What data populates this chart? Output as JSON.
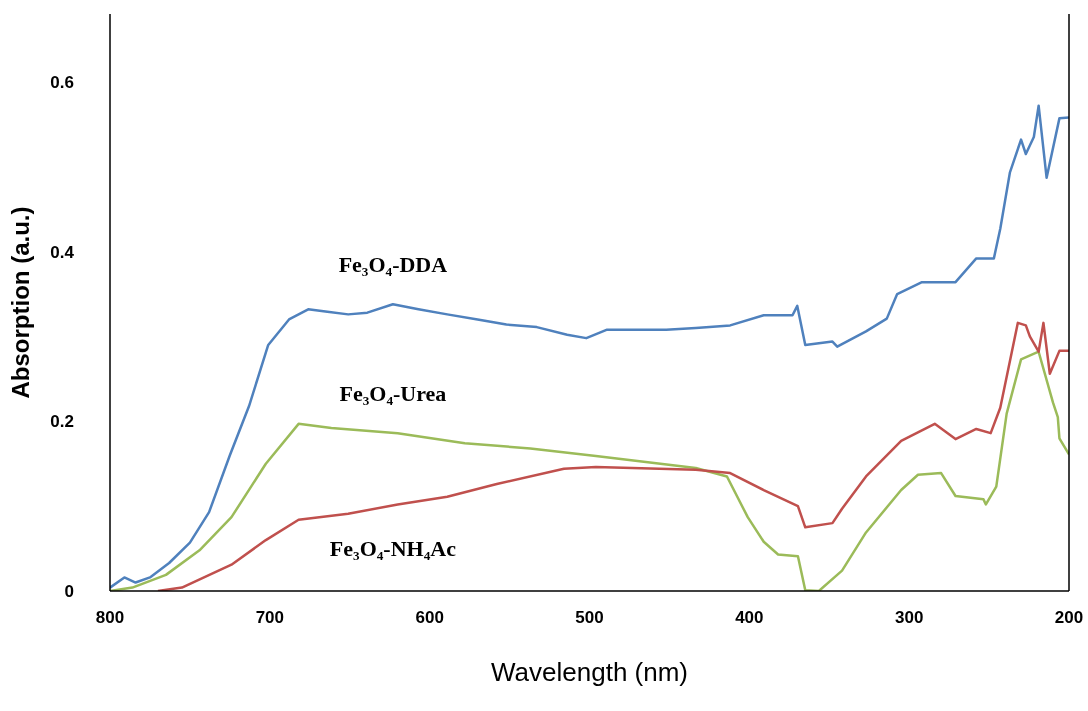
{
  "chart_data": {
    "type": "line",
    "xlabel": "Wavelength (nm)",
    "ylabel": "Absorption (a.u.)",
    "xlim": [
      800,
      200
    ],
    "xticks": [
      800,
      700,
      600,
      500,
      400,
      300,
      200
    ],
    "ylim": [
      0,
      0.68
    ],
    "yticks": [
      0,
      0.2,
      0.4,
      0.6
    ],
    "marker": "none",
    "line_style": "solid",
    "series": [
      {
        "name": "Fe₃O₄-DDA",
        "color": "#4f81bd",
        "x": [
          800,
          791,
          784,
          775,
          763,
          750,
          738,
          725,
          713,
          701,
          688,
          676,
          664,
          651,
          639,
          623,
          607,
          589,
          570,
          552,
          533,
          514,
          502,
          489,
          471,
          452,
          433.5,
          412,
          391,
          373,
          370,
          365,
          348,
          345,
          327,
          314,
          307.5,
          292,
          271,
          258,
          247,
          243,
          237,
          230,
          227,
          222,
          219,
          214,
          206,
          200
        ],
        "values": [
          0.004,
          0.016,
          0.01,
          0.016,
          0.033,
          0.057,
          0.093,
          0.16,
          0.218,
          0.29,
          0.32,
          0.332,
          0.329,
          0.326,
          0.328,
          0.338,
          0.332,
          0.326,
          0.32,
          0.314,
          0.311,
          0.302,
          0.298,
          0.308,
          0.308,
          0.308,
          0.31,
          0.313,
          0.325,
          0.325,
          0.336,
          0.29,
          0.294,
          0.288,
          0.306,
          0.321,
          0.35,
          0.364,
          0.364,
          0.392,
          0.392,
          0.427,
          0.493,
          0.532,
          0.515,
          0.535,
          0.572,
          0.487,
          0.557,
          0.558
        ]
      },
      {
        "name": "Fe₃O₄-Urea",
        "color": "#9bbb59",
        "x": [
          800,
          786,
          765,
          744,
          724,
          702.5,
          682,
          661.5,
          620,
          578,
          537,
          496,
          433.5,
          414,
          401,
          391,
          382,
          369.6,
          365,
          356.5,
          342,
          327,
          305,
          294.5,
          280,
          271,
          253.5,
          252,
          245.5,
          239,
          230,
          219,
          210,
          207,
          206,
          200
        ],
        "values": [
          0.0,
          0.004,
          0.019,
          0.048,
          0.087,
          0.15,
          0.197,
          0.192,
          0.186,
          0.174,
          0.168,
          0.159,
          0.145,
          0.135,
          0.087,
          0.058,
          0.043,
          0.041,
          0.001,
          0.0,
          0.024,
          0.069,
          0.119,
          0.137,
          0.139,
          0.112,
          0.108,
          0.102,
          0.123,
          0.209,
          0.273,
          0.282,
          0.222,
          0.205,
          0.18,
          0.161
        ]
      },
      {
        "name": "Fe₃O₄-NH₄Ac",
        "color": "#c0504d",
        "x": [
          770,
          755,
          724,
          702.5,
          682,
          651,
          620,
          589,
          558,
          516,
          496,
          433.5,
          412,
          391,
          369.6,
          365,
          348,
          342,
          327,
          305,
          284,
          271,
          258,
          249,
          243,
          232,
          227,
          224.5,
          219,
          216,
          212,
          206,
          200
        ],
        "values": [
          0.0,
          0.004,
          0.031,
          0.06,
          0.084,
          0.091,
          0.102,
          0.111,
          0.126,
          0.144,
          0.146,
          0.143,
          0.139,
          0.119,
          0.1,
          0.075,
          0.08,
          0.097,
          0.135,
          0.177,
          0.197,
          0.179,
          0.191,
          0.186,
          0.216,
          0.316,
          0.313,
          0.3,
          0.282,
          0.316,
          0.256,
          0.283,
          0.283
        ]
      }
    ]
  }
}
